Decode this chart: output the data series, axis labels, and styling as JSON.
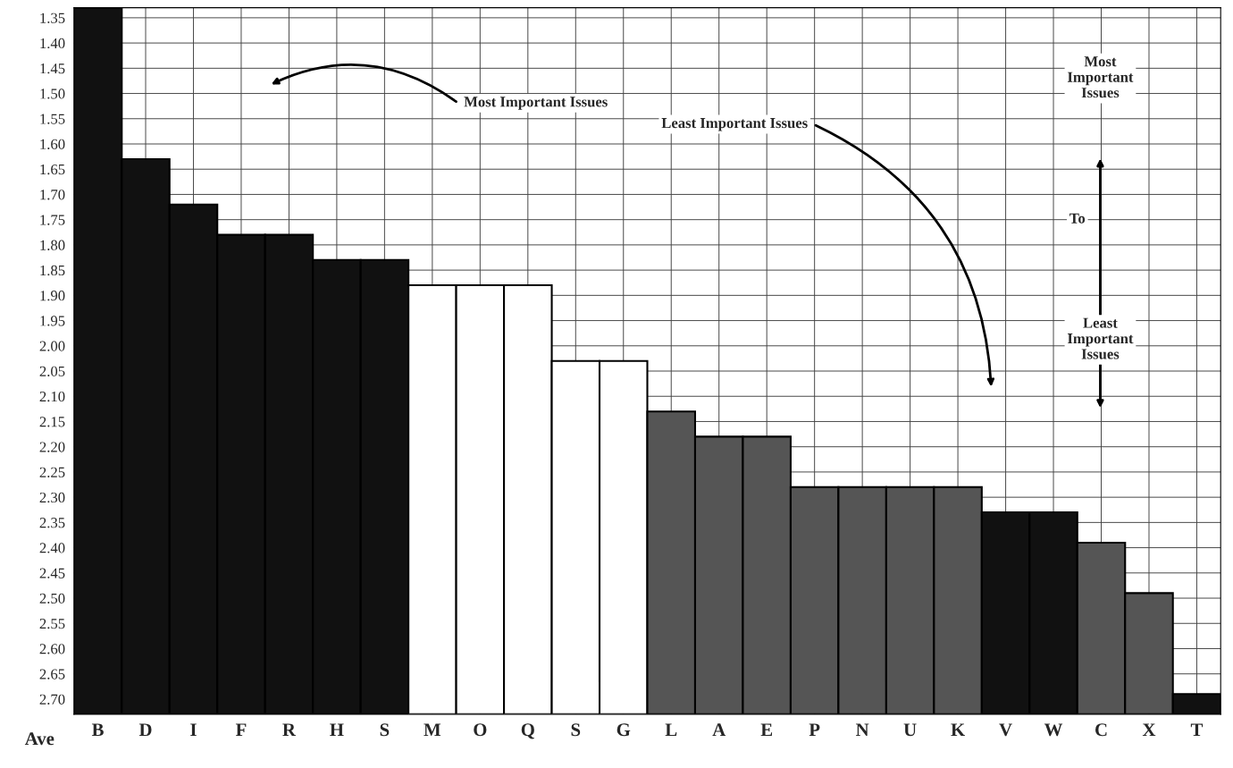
{
  "chart_data": {
    "type": "bar",
    "xlabel": "Ave",
    "categories": [
      "B",
      "D",
      "I",
      "F",
      "R",
      "H",
      "S",
      "M",
      "O",
      "Q",
      "S",
      "G",
      "L",
      "A",
      "E",
      "P",
      "N",
      "U",
      "K",
      "V",
      "W",
      "C",
      "X",
      "T"
    ],
    "base": [
      2.73,
      2.73,
      2.73,
      2.73,
      2.73,
      2.73,
      2.73,
      2.73,
      2.73,
      2.73,
      2.73,
      2.73,
      2.73,
      2.73,
      2.73,
      2.73,
      2.73,
      2.73,
      2.73,
      2.73,
      2.73,
      2.73,
      2.73,
      2.73
    ],
    "values": [
      -1.4,
      -1.1,
      -1.01,
      -0.95,
      -0.95,
      -0.9,
      -0.9,
      -0.85,
      -0.85,
      -0.85,
      -0.7,
      -0.7,
      -0.6,
      -0.55,
      -0.55,
      -0.45,
      -0.45,
      -0.45,
      -0.45,
      -0.4,
      -0.4,
      -0.34,
      -0.24,
      -0.04
    ],
    "colors": [
      "#111111",
      "#111111",
      "#111111",
      "#111111",
      "#111111",
      "#111111",
      "#111111",
      "#ffffff",
      "#ffffff",
      "#ffffff",
      "#ffffff",
      "#ffffff",
      "#555555",
      "#555555",
      "#555555",
      "#555555",
      "#555555",
      "#555555",
      "#555555",
      "#111111",
      "#111111",
      "#555555",
      "#555555",
      "#111111"
    ],
    "ylim": [
      2.73,
      1.33
    ],
    "yticks": [
      {
        "value": 1.35,
        "label": "1.35"
      },
      {
        "value": 1.4,
        "label": "1.40"
      },
      {
        "value": 1.45,
        "label": "1.45"
      },
      {
        "value": 1.5,
        "label": "1.50"
      },
      {
        "value": 1.55,
        "label": "1.55"
      },
      {
        "value": 1.6,
        "label": "1.60"
      },
      {
        "value": 1.65,
        "label": "1.65"
      },
      {
        "value": 1.7,
        "label": "1.70"
      },
      {
        "value": 1.75,
        "label": "1.75"
      },
      {
        "value": 1.8,
        "label": "1.80"
      },
      {
        "value": 1.85,
        "label": "1.85"
      },
      {
        "value": 1.9,
        "label": "1.90"
      },
      {
        "value": 1.95,
        "label": "1.95"
      },
      {
        "value": 2.0,
        "label": "2.00"
      },
      {
        "value": 2.05,
        "label": "2.05"
      },
      {
        "value": 2.1,
        "label": "2.10"
      },
      {
        "value": 2.15,
        "label": "2.15"
      },
      {
        "value": 2.2,
        "label": "2.20"
      },
      {
        "value": 2.25,
        "label": "2.25"
      },
      {
        "value": 2.3,
        "label": "2.30"
      },
      {
        "value": 2.35,
        "label": "2.35"
      },
      {
        "value": 2.4,
        "label": "2.40"
      },
      {
        "value": 2.45,
        "label": "2.45"
      },
      {
        "value": 2.5,
        "label": "2.50"
      },
      {
        "value": 2.55,
        "label": "2.55"
      },
      {
        "value": 2.6,
        "label": "2.60"
      },
      {
        "value": 2.65,
        "label": "2.65"
      },
      {
        "value": 2.7,
        "label": "2.70"
      }
    ],
    "grid": true,
    "annotations": [
      "Most Important Issues",
      "Least Important Issues",
      "Most Important Issues",
      "To",
      "Least Important Issues"
    ]
  }
}
